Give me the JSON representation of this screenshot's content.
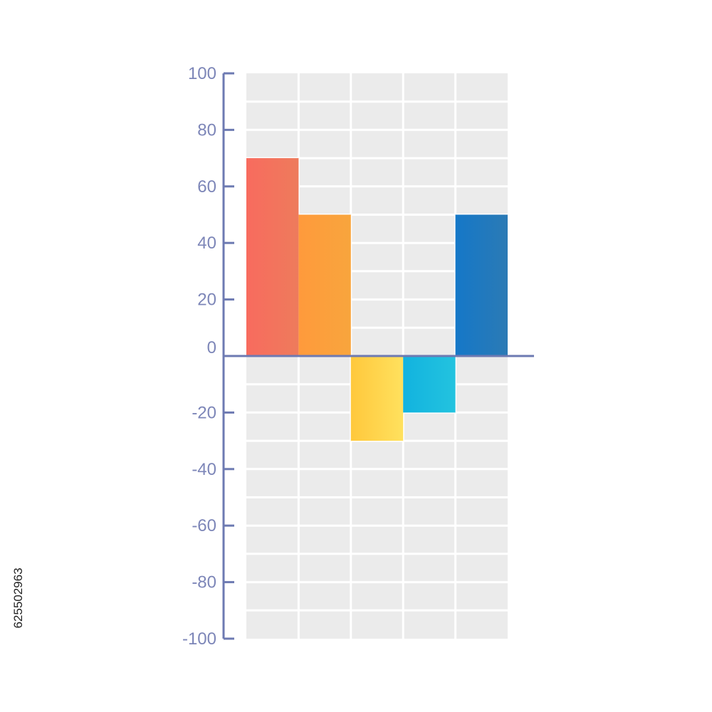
{
  "chart_data": {
    "type": "bar",
    "categories": [
      "",
      "",
      "",
      "",
      ""
    ],
    "values": [
      70,
      50,
      -30,
      -20,
      50
    ],
    "title": "",
    "xlabel": "",
    "ylabel": "",
    "ylim": [
      -100,
      100
    ],
    "yticks": [
      100,
      80,
      60,
      40,
      20,
      0,
      -20,
      -40,
      -60,
      -80,
      -100
    ],
    "ytick_labels": [
      "100",
      "80",
      "60",
      "40",
      "20",
      "0",
      "-20",
      "-40",
      "-60",
      "-80",
      "-100"
    ],
    "grid": true,
    "legend": "none",
    "bar_colors": [
      [
        "#f86b5e",
        "#ee7b5c"
      ],
      [
        "#ff9a3c",
        "#f8a53d"
      ],
      [
        "#ffc83c",
        "#ffe15e"
      ],
      [
        "#12b3df",
        "#23c3df"
      ],
      [
        "#1578c8",
        "#2b7ab5"
      ]
    ]
  },
  "colors": {
    "axis": "#6d7ab2",
    "tick_text": "#7d86b8",
    "grid_background": "#ebebeb",
    "grid_lines": "#ffffff"
  },
  "watermark": {
    "id_text": "625502963"
  }
}
